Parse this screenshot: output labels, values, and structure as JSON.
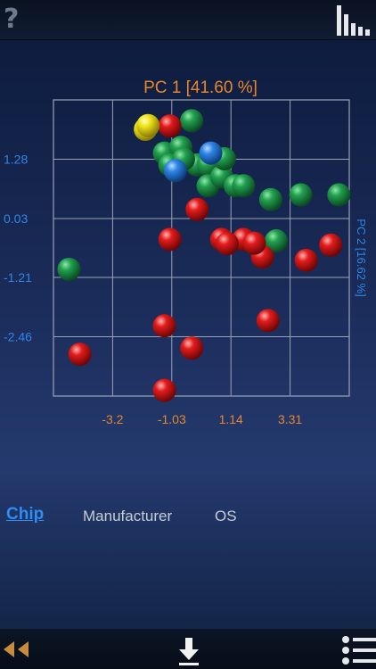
{
  "toolbar": {
    "help_icon": "help-icon",
    "chart_type_icon": "bar-chart-icon"
  },
  "chart_data": {
    "type": "scatter",
    "title": "PC 1 [41.60 %]",
    "ylabel": "PC 2 [16.62 %]",
    "x_ticks": [
      "-3.2",
      "-1.03",
      "1.14",
      "3.31"
    ],
    "x_tick_values": [
      -3.2,
      -1.03,
      1.14,
      3.31
    ],
    "y_ticks": [
      "1.28",
      "0.03",
      "-1.21",
      "-2.46"
    ],
    "y_tick_values": [
      1.28,
      0.03,
      -1.21,
      -2.46
    ],
    "xlim": [
      -5.37,
      5.48
    ],
    "ylim": [
      -3.71,
      2.53
    ],
    "grid": true,
    "title_color": "#e8872a",
    "x_tick_color": "#e8872a",
    "y_tick_color": "#2f86e8",
    "series": [
      {
        "color": "#22a050",
        "points": [
          [
            -0.3,
            2.09
          ],
          [
            -1.3,
            1.41
          ],
          [
            -0.7,
            1.53
          ],
          [
            -0.1,
            1.16
          ],
          [
            0.3,
            1.16
          ],
          [
            0.3,
            0.72
          ],
          [
            0.8,
            0.91
          ],
          [
            0.9,
            1.29
          ],
          [
            1.3,
            0.72
          ],
          [
            1.6,
            0.72
          ],
          [
            2.6,
            0.43
          ],
          [
            3.7,
            0.53
          ],
          [
            5.1,
            0.53
          ],
          [
            -4.8,
            -1.04
          ],
          [
            -1.1,
            1.16
          ],
          [
            -0.6,
            1.28
          ],
          [
            2.8,
            -0.44
          ]
        ]
      },
      {
        "color": "#e31b1b",
        "points": [
          [
            -1.1,
            1.98
          ],
          [
            -0.1,
            0.22
          ],
          [
            -1.1,
            -0.41
          ],
          [
            0.8,
            -0.41
          ],
          [
            1.6,
            -0.41
          ],
          [
            2.3,
            -0.78
          ],
          [
            3.9,
            -0.85
          ],
          [
            4.8,
            -0.53
          ],
          [
            2.5,
            -2.12
          ],
          [
            -1.3,
            -2.23
          ],
          [
            -0.3,
            -2.7
          ],
          [
            -4.4,
            -2.83
          ],
          [
            -1.3,
            -3.59
          ],
          [
            1.0,
            -0.5
          ],
          [
            2.0,
            -0.49
          ]
        ]
      },
      {
        "color": "#f0e51c",
        "points": [
          [
            -2.0,
            1.91
          ],
          [
            -1.9,
            1.99
          ]
        ]
      },
      {
        "color": "#2f86e8",
        "points": [
          [
            0.4,
            1.41
          ],
          [
            -0.9,
            1.04
          ]
        ]
      }
    ]
  },
  "tabs": [
    {
      "label": "Chip",
      "selected": true
    },
    {
      "label": "Manufacturer",
      "selected": false
    },
    {
      "label": "OS",
      "selected": false
    }
  ],
  "bottombar": {
    "back_icon": "double-back-arrow-icon",
    "download_icon": "download-icon",
    "menu_icon": "list-menu-icon"
  }
}
